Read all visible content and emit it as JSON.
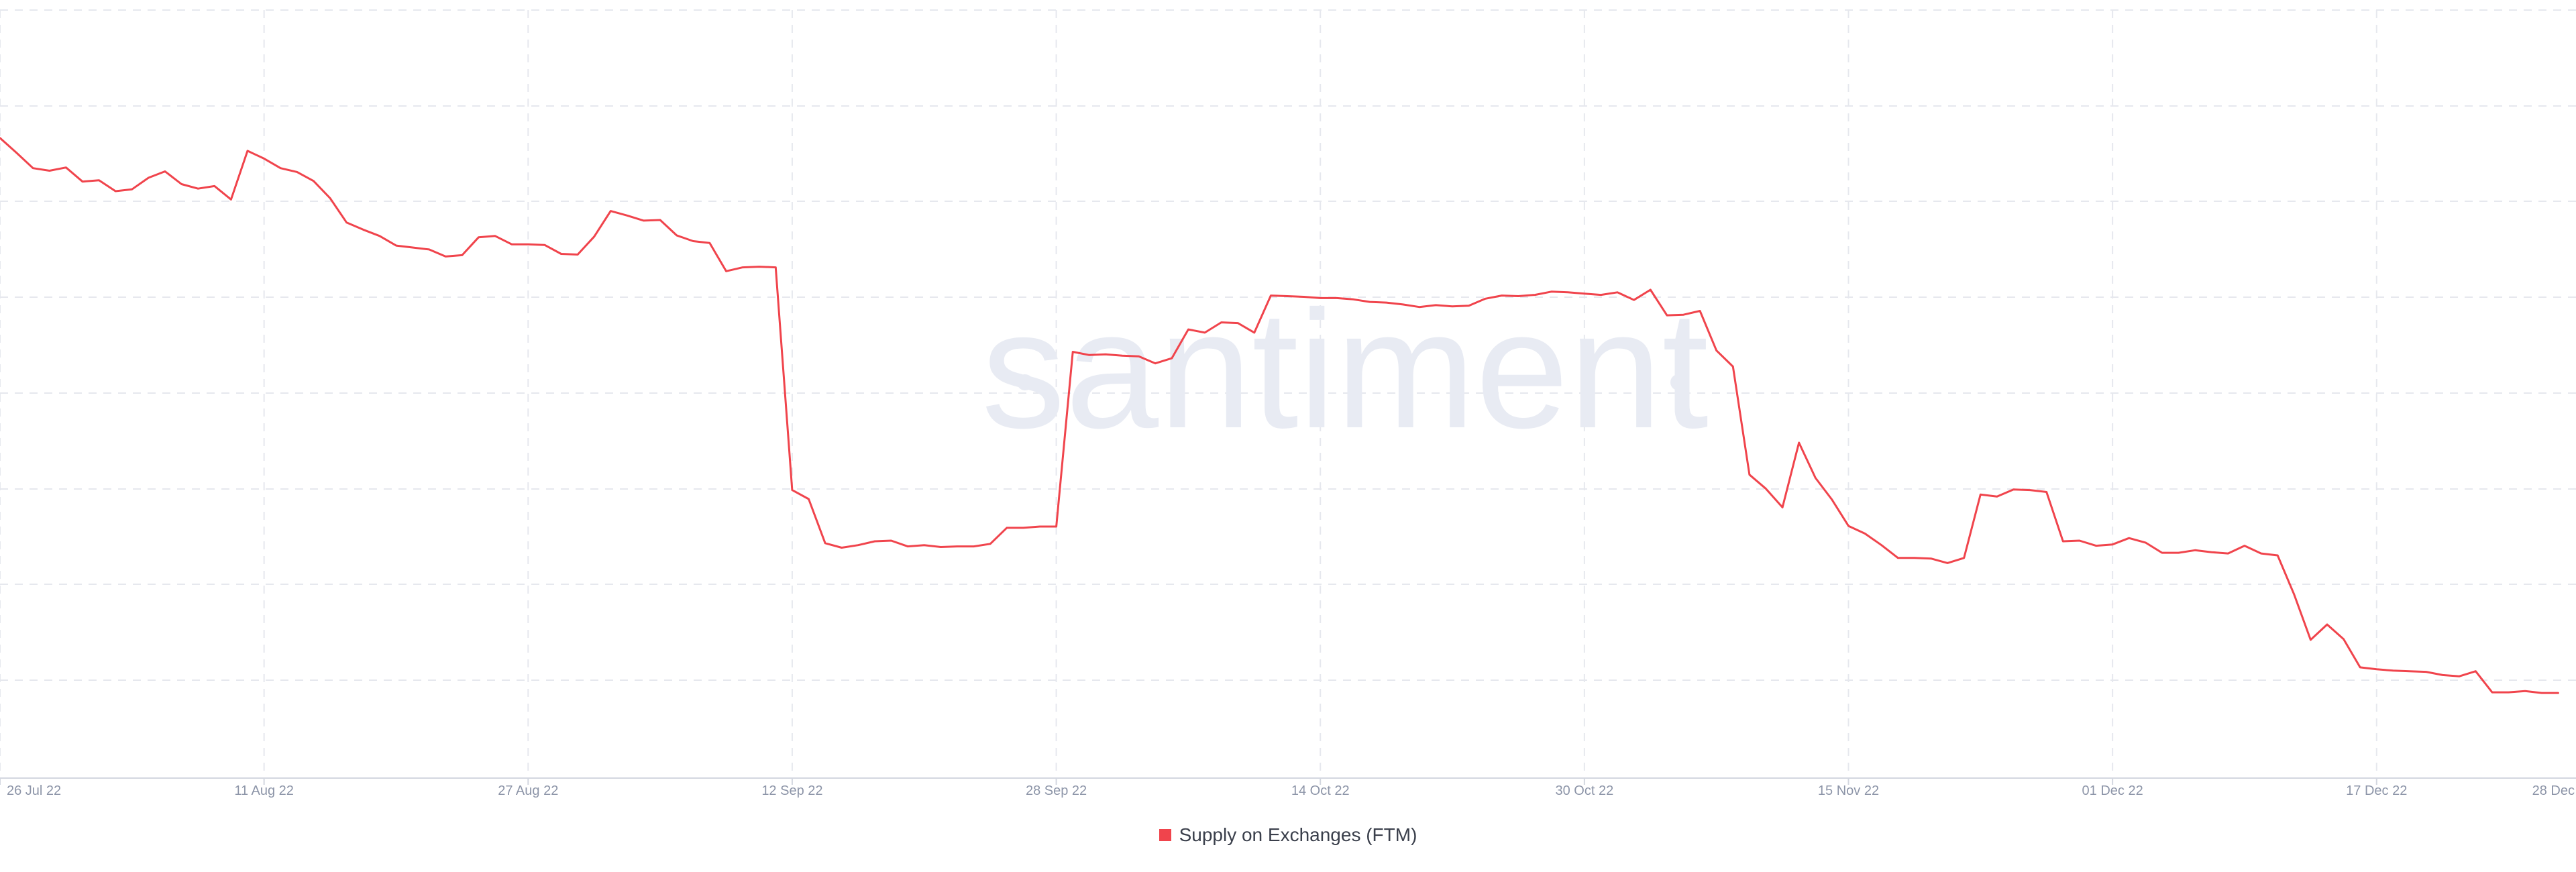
{
  "chart_data": {
    "type": "line",
    "title": "",
    "xlabel": "",
    "ylabel": "",
    "x_tick_labels": [
      "26 Jul 22",
      "11 Aug 22",
      "27 Aug 22",
      "12 Sep 22",
      "28 Sep 22",
      "14 Oct 22",
      "30 Oct 22",
      "15 Nov 22",
      "01 Dec 22",
      "17 Dec 22",
      "28 Dec"
    ],
    "x_tick_days": [
      0,
      16,
      32,
      48,
      64,
      80,
      96,
      112,
      128,
      144,
      155
    ],
    "y_tick_labels": [],
    "grid": true,
    "legend_position": "bottom-center",
    "watermark": "santiment",
    "series": [
      {
        "name": "Supply on Exchanges (FTM)",
        "color": "#f0444c",
        "note": "values on relative 0-100 scale (chart prints no y-axis values)",
        "values": [
          95.0,
          92.7,
          90.3,
          89.9,
          90.4,
          88.2,
          88.4,
          86.7,
          87.0,
          88.8,
          89.8,
          87.8,
          87.1,
          87.5,
          85.4,
          93.0,
          91.8,
          90.3,
          89.7,
          88.3,
          85.6,
          81.8,
          80.7,
          79.7,
          78.2,
          77.9,
          77.6,
          76.5,
          76.7,
          79.5,
          79.7,
          78.4,
          78.4,
          78.3,
          76.9,
          76.8,
          79.6,
          83.6,
          82.9,
          82.1,
          82.2,
          79.8,
          78.9,
          78.6,
          74.2,
          74.8,
          74.9,
          74.8,
          40.0,
          38.6,
          31.7,
          31.0,
          31.4,
          32.0,
          32.1,
          31.2,
          31.4,
          31.1,
          31.2,
          31.2,
          31.6,
          34.1,
          34.1,
          34.3,
          34.3,
          61.6,
          61.1,
          61.2,
          61.0,
          60.9,
          59.8,
          60.6,
          65.1,
          64.6,
          66.2,
          66.1,
          64.6,
          70.4,
          70.3,
          70.2,
          70.0,
          70.0,
          69.8,
          69.4,
          69.3,
          69.0,
          68.6,
          68.9,
          68.7,
          68.8,
          69.9,
          70.4,
          70.3,
          70.5,
          71.0,
          70.9,
          70.7,
          70.5,
          70.9,
          69.7,
          71.3,
          67.3,
          67.4,
          68.0,
          61.8,
          59.3,
          42.4,
          40.2,
          37.3,
          47.4,
          41.9,
          38.5,
          34.4,
          33.2,
          31.4,
          29.4,
          29.4,
          29.3,
          28.6,
          29.4,
          39.3,
          39.0,
          40.1,
          40.0,
          39.7,
          32.0,
          32.1,
          31.3,
          31.5,
          32.5,
          31.8,
          30.2,
          30.2,
          30.6,
          30.3,
          30.1,
          31.3,
          30.1,
          29.8,
          23.7,
          16.6,
          19.0,
          16.7,
          12.3,
          12.0,
          11.8,
          11.7,
          11.6,
          11.1,
          10.9,
          11.7,
          8.4,
          8.4,
          8.6,
          8.3,
          8.3
        ]
      }
    ]
  }
}
